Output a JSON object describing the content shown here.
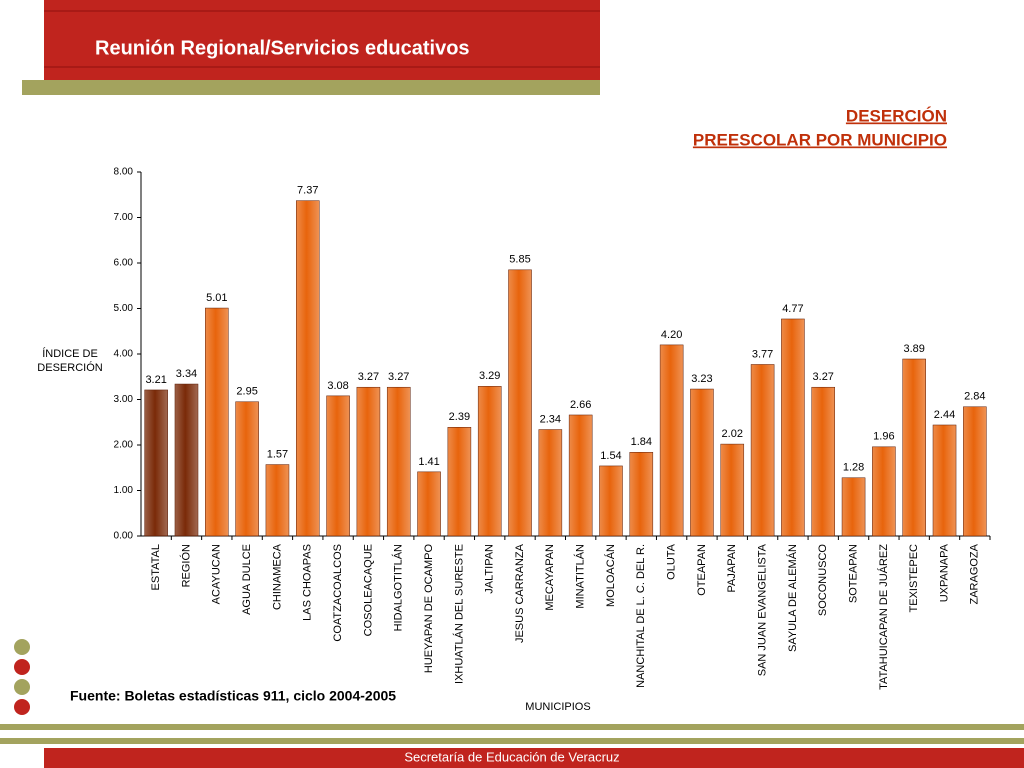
{
  "header": {
    "title": "Reunión Regional/Servicios educativos"
  },
  "source": "Fuente: Boletas estadísticas 911, ciclo 2004-2005",
  "footer": "Secretaría de Educación de Veracruz",
  "chart_data": {
    "type": "bar",
    "title": [
      "DESERCIÓN",
      "PREESCOLAR POR MUNICIPIO"
    ],
    "ylabel": [
      "ÍNDICE DE",
      "DESERCIÓN"
    ],
    "xlabel": "MUNICIPIOS",
    "categories": [
      "ESTATAL",
      "REGIÓN",
      "ACAYUCAN",
      "AGUA DULCE",
      "CHINAMECA",
      "LAS CHOAPAS",
      "COATZACOALCOS",
      "COSOLEACAQUE",
      "HIDALGOTITLÁN",
      "HUEYAPAN DE OCAMPO",
      "IXHUATLÁN DEL SURESTE",
      "JALTIPAN",
      "JESUS CARRANZA",
      "MECAYAPAN",
      "MINATITLÁN",
      "MOLOACÁN",
      "NANCHITAL DE L. C. DEL R.",
      "OLUTA",
      "OTEAPAN",
      "PAJAPAN",
      "SAN JUAN EVANGELISTA",
      "SAYULA DE ALEMÁN",
      "SOCONUSCO",
      "SOTEAPAN",
      "TATAHUICAPAN DE JUÁREZ",
      "TEXISTEPEC",
      "UXPANAPA",
      "ZARAGOZA"
    ],
    "values": [
      3.21,
      3.34,
      5.01,
      2.95,
      1.57,
      7.37,
      3.08,
      3.27,
      3.27,
      1.41,
      2.39,
      3.29,
      5.85,
      2.34,
      2.66,
      1.54,
      1.84,
      4.2,
      3.23,
      2.02,
      3.77,
      4.77,
      3.27,
      1.28,
      1.96,
      3.89,
      2.44,
      2.84
    ],
    "value_labels": [
      "3.21",
      "3.34",
      "5.01",
      "2.95",
      "1.57",
      "7.37",
      "3.08",
      "3.27",
      "3.27",
      "1.41",
      "2.39",
      "3.29",
      "5.85",
      "2.34",
      "2.66",
      "1.54",
      "1.84",
      "4.20",
      "3.23",
      "2.02",
      "3.77",
      "4.77",
      "3.27",
      "1.28",
      "1.96",
      "3.89",
      "2.44",
      "2.84"
    ],
    "colors": [
      "#7a2a08",
      "#7a2a08",
      "#e8640c",
      "#e8640c",
      "#e8640c",
      "#e8640c",
      "#e8640c",
      "#e8640c",
      "#e8640c",
      "#e8640c",
      "#e8640c",
      "#e8640c",
      "#e8640c",
      "#e8640c",
      "#e8640c",
      "#e8640c",
      "#e8640c",
      "#e8640c",
      "#e8640c",
      "#e8640c",
      "#e8640c",
      "#e8640c",
      "#e8640c",
      "#e8640c",
      "#e8640c",
      "#e8640c",
      "#e8640c",
      "#e8640c"
    ],
    "ylim": [
      0,
      8
    ],
    "yticks": [
      {
        "value": 0,
        "label": "0.00"
      },
      {
        "value": 1,
        "label": "1.00"
      },
      {
        "value": 2,
        "label": "2.00"
      },
      {
        "value": 3,
        "label": "3.00"
      },
      {
        "value": 4,
        "label": "4.00"
      },
      {
        "value": 5,
        "label": "5.00"
      },
      {
        "value": 6,
        "label": "6.00"
      },
      {
        "value": 7,
        "label": "7.00"
      },
      {
        "value": 8,
        "label": "8.00"
      }
    ]
  }
}
